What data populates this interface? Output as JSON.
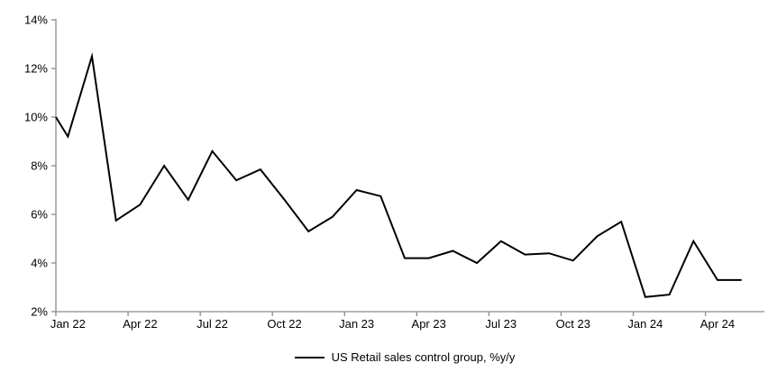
{
  "chart_data": {
    "type": "line",
    "title": "",
    "x": [
      "Jan 22",
      "Feb 22",
      "Mar 22",
      "Apr 22",
      "May 22",
      "Jun 22",
      "Jul 22",
      "Aug 22",
      "Sep 22",
      "Oct 22",
      "Nov 22",
      "Dec 22",
      "Jan 23",
      "Feb 23",
      "Mar 23",
      "Apr 23",
      "May 23",
      "Jun 23",
      "Jul 23",
      "Aug 23",
      "Sep 23",
      "Oct 23",
      "Nov 23",
      "Dec 23",
      "Jan 24",
      "Feb 24",
      "Mar 24",
      "Apr 24",
      "May 24"
    ],
    "series": [
      {
        "name": "US Retail sales control group, %y/y",
        "values": [
          9.2,
          12.5,
          5.75,
          6.4,
          8.0,
          6.6,
          8.6,
          7.4,
          7.85,
          6.6,
          5.3,
          5.9,
          7.0,
          6.75,
          4.2,
          4.2,
          4.5,
          4.0,
          4.9,
          4.35,
          4.4,
          4.1,
          5.1,
          5.7,
          2.6,
          2.7,
          4.9,
          3.3,
          3.3
        ]
      }
    ],
    "edge_start_value": 10.0,
    "ylim": [
      2,
      14
    ],
    "ytick_step": 2,
    "ytick_suffix": "%",
    "ytick_labels": [
      "2%",
      "4%",
      "6%",
      "8%",
      "10%",
      "12%",
      "14%"
    ],
    "xtick_every": 3,
    "xtick_labels": [
      "Jan 22",
      "Apr 22",
      "Jul 22",
      "Oct 22",
      "Jan 23",
      "Apr 23",
      "Jul 23",
      "Oct 23",
      "Jan 24",
      "Apr 24"
    ],
    "grid": false,
    "legend_position": "bottom",
    "line_color": "#000000",
    "axis_color": "#8c8c8c",
    "text_color": "#000000"
  },
  "legend": {
    "label": "US Retail sales control group, %y/y"
  }
}
